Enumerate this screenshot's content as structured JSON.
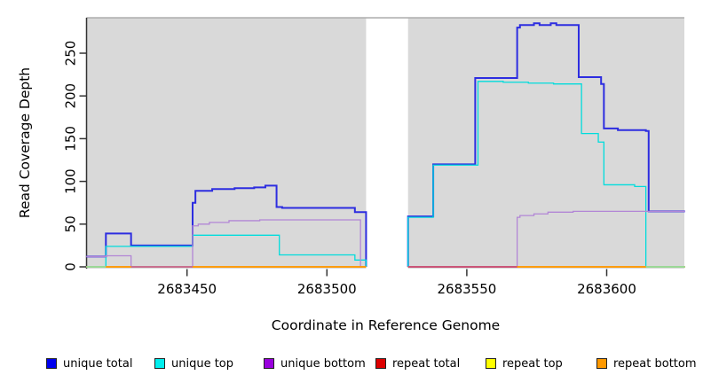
{
  "figure": {
    "x_axis_label": "Coordinate in Reference Genome",
    "y_axis_label": "Read Coverage Depth"
  },
  "chart_data": {
    "type": "line",
    "step": "post",
    "title": "",
    "xlabel": "Coordinate in Reference Genome",
    "ylabel": "Read Coverage Depth",
    "x_ticks": [
      2683450,
      2683500,
      2683550,
      2683600
    ],
    "y_ticks": [
      0,
      50,
      100,
      150,
      200,
      250
    ],
    "xlim": [
      2683414,
      2683628
    ],
    "ylim": [
      0,
      292
    ],
    "panel_background": "#d9d9d9",
    "grid": false,
    "legend_position": "bottom",
    "no_data_gap": {
      "from": 2683514,
      "to": 2683529
    },
    "series": [
      {
        "name": "unique total",
        "color": "#2d2de0",
        "width": 2,
        "segments": [
          {
            "end": 2683514,
            "points": [
              [
                2683414,
                12
              ],
              [
                2683421,
                39
              ],
              [
                2683430,
                25
              ],
              [
                2683452,
                75
              ],
              [
                2683453,
                89
              ],
              [
                2683459,
                91
              ],
              [
                2683467,
                92
              ],
              [
                2683474,
                93
              ],
              [
                2683478,
                95
              ],
              [
                2683482,
                70
              ],
              [
                2683484,
                69
              ],
              [
                2683510,
                64
              ],
              [
                2683514,
                0
              ]
            ]
          },
          {
            "end": 2683628,
            "points": [
              [
                2683529,
                0
              ],
              [
                2683529,
                59
              ],
              [
                2683538,
                120
              ],
              [
                2683553,
                221
              ],
              [
                2683568,
                280
              ],
              [
                2683569,
                283
              ],
              [
                2683574,
                285
              ],
              [
                2683576,
                283
              ],
              [
                2683580,
                285
              ],
              [
                2683582,
                283
              ],
              [
                2683590,
                222
              ],
              [
                2683598,
                214
              ],
              [
                2683599,
                162
              ],
              [
                2683604,
                160
              ],
              [
                2683614,
                159
              ],
              [
                2683615,
                65
              ]
            ]
          }
        ]
      },
      {
        "name": "unique top",
        "color": "#00dcdc",
        "width": 1.3,
        "segments": [
          {
            "end": 2683514,
            "points": [
              [
                2683414,
                0
              ],
              [
                2683421,
                24
              ],
              [
                2683452,
                37
              ],
              [
                2683483,
                14
              ],
              [
                2683510,
                8
              ],
              [
                2683514,
                0
              ]
            ]
          },
          {
            "end": 2683628,
            "points": [
              [
                2683529,
                0
              ],
              [
                2683529,
                58
              ],
              [
                2683538,
                119
              ],
              [
                2683554,
                217
              ],
              [
                2683563,
                216
              ],
              [
                2683572,
                215
              ],
              [
                2683581,
                214
              ],
              [
                2683591,
                156
              ],
              [
                2683597,
                146
              ],
              [
                2683599,
                96
              ],
              [
                2683610,
                94
              ],
              [
                2683614,
                0
              ]
            ]
          }
        ]
      },
      {
        "name": "unique bottom",
        "color": "#b286d6",
        "width": 1.3,
        "segments": [
          {
            "end": 2683514,
            "points": [
              [
                2683414,
                12
              ],
              [
                2683421,
                13
              ],
              [
                2683430,
                0
              ],
              [
                2683452,
                48
              ],
              [
                2683454,
                50
              ],
              [
                2683458,
                52
              ],
              [
                2683465,
                54
              ],
              [
                2683476,
                55
              ],
              [
                2683512,
                0
              ]
            ]
          },
          {
            "end": 2683628,
            "points": [
              [
                2683529,
                0
              ],
              [
                2683568,
                58
              ],
              [
                2683569,
                60
              ],
              [
                2683574,
                62
              ],
              [
                2683579,
                64
              ],
              [
                2683588,
                65
              ]
            ]
          }
        ]
      },
      {
        "name": "repeat total",
        "color": "#dd0000",
        "width": 1.3,
        "segments": [
          {
            "end": 2683514,
            "points": [
              [
                2683414,
                0
              ]
            ]
          },
          {
            "end": 2683628,
            "points": [
              [
                2683529,
                0
              ]
            ]
          }
        ]
      },
      {
        "name": "repeat top",
        "color": "#f5f500",
        "width": 1.3,
        "segments": [
          {
            "end": 2683514,
            "points": [
              [
                2683414,
                0
              ]
            ]
          },
          {
            "end": 2683628,
            "points": [
              [
                2683529,
                0
              ]
            ]
          }
        ]
      },
      {
        "name": "repeat bottom",
        "color": "#ff9900",
        "width": 1.8,
        "segments": [
          {
            "end": 2683514,
            "points": [
              [
                2683414,
                0
              ]
            ]
          },
          {
            "end": 2683628,
            "points": [
              [
                2683529,
                0
              ]
            ]
          }
        ]
      }
    ],
    "zero_line_overlays": [
      {
        "from": 2683414,
        "to": 2683421,
        "color": "#8fdfa8"
      },
      {
        "from": 2683430,
        "to": 2683452,
        "color": "#c2699f"
      },
      {
        "from": 2683529,
        "to": 2683568,
        "color": "#c34b86"
      },
      {
        "from": 2683614,
        "to": 2683628,
        "color": "#8fdfa8"
      }
    ]
  },
  "legend": {
    "items": [
      {
        "label": "unique total",
        "color": "#0000ee"
      },
      {
        "label": "unique top",
        "color": "#00eeee"
      },
      {
        "label": "unique bottom",
        "color": "#9900dd"
      },
      {
        "label": "repeat total",
        "color": "#dd0000"
      },
      {
        "label": "repeat top",
        "color": "#ffff00"
      },
      {
        "label": "repeat bottom",
        "color": "#ff9900"
      }
    ]
  }
}
